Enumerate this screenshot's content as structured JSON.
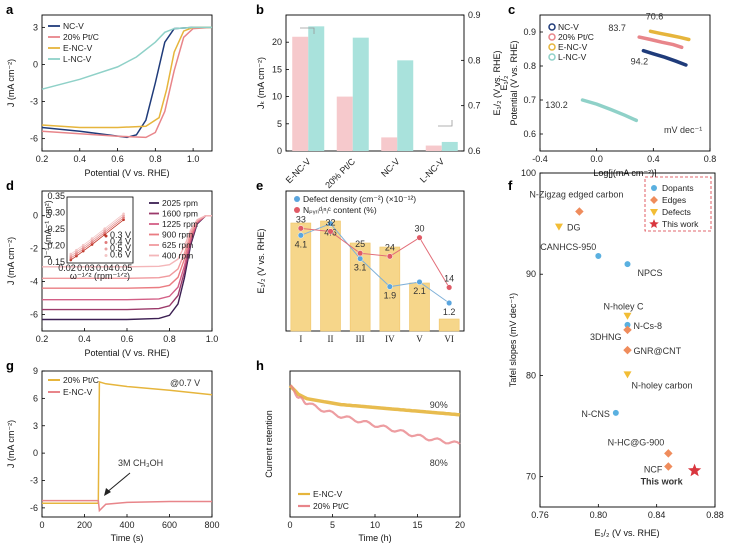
{
  "colors": {
    "nc": "#1f3b7a",
    "pt": "#e8858a",
    "enc": "#e6b53c",
    "lnc": "#8fd1c8",
    "pink_bar": "#f6c9cc",
    "teal_bar": "#a9e2dc",
    "dopant": "#5ab0e0",
    "edge": "#ef8c5c",
    "defect": "#f2bd35",
    "star": "#d9363e",
    "rde": [
      "#f4b6b9",
      "#f09a9e",
      "#ea7c82",
      "#d35f86",
      "#9b3a6a",
      "#3b1f52"
    ],
    "bar_e": "#f6d68a",
    "def_line": "#7fb0d8",
    "n_line": "#e26d78"
  },
  "panels": [
    {
      "id": "a",
      "letter": "a"
    },
    {
      "id": "b",
      "letter": "b"
    },
    {
      "id": "c",
      "letter": "c"
    },
    {
      "id": "d",
      "letter": "d"
    },
    {
      "id": "e",
      "letter": "e"
    },
    {
      "id": "f",
      "letter": "f"
    },
    {
      "id": "g",
      "letter": "g"
    },
    {
      "id": "h",
      "letter": "h"
    }
  ],
  "chart_data": [
    {
      "panel": "a",
      "type": "line",
      "xlabel": "Potential (V vs. RHE)",
      "ylabel": "J (mA cm⁻²)",
      "xlim": [
        0.2,
        1.1
      ],
      "ylim": [
        -7,
        4
      ],
      "xticks": [
        "0.2",
        "0.4",
        "0.6",
        "0.8",
        "1.0"
      ],
      "yticks": [
        "3",
        "0",
        "-3",
        "-6"
      ],
      "legend_position": "top-left",
      "series": [
        {
          "name": "NC-V",
          "color": "nc",
          "x": [
            0.2,
            0.4,
            0.55,
            0.65,
            0.7,
            0.75,
            0.8,
            0.85,
            0.9,
            1.0,
            1.1
          ],
          "y": [
            -5.1,
            -5.4,
            -5.7,
            -5.9,
            -5.7,
            -4.5,
            -1.5,
            1.8,
            2.9,
            3.0,
            3.0
          ]
        },
        {
          "name": "20% Pt/C",
          "color": "pt",
          "x": [
            0.2,
            0.4,
            0.6,
            0.75,
            0.8,
            0.85,
            0.9,
            0.95,
            1.0,
            1.1
          ],
          "y": [
            -5.4,
            -5.6,
            -5.8,
            -5.9,
            -5.5,
            -3.8,
            -0.5,
            2.2,
            2.9,
            3.0
          ]
        },
        {
          "name": "E-NC-V",
          "color": "enc",
          "x": [
            0.2,
            0.4,
            0.6,
            0.75,
            0.82,
            0.86,
            0.9,
            0.95,
            1.0,
            1.1
          ],
          "y": [
            -4.9,
            -5.1,
            -5.1,
            -5.0,
            -4.3,
            -2.0,
            1.0,
            2.7,
            3.0,
            3.0
          ]
        },
        {
          "name": "L-NC-V",
          "color": "lnc",
          "x": [
            0.2,
            0.4,
            0.6,
            0.7,
            0.8,
            0.85,
            0.9,
            1.0,
            1.1
          ],
          "y": [
            -2.0,
            -1.2,
            -0.2,
            0.6,
            1.8,
            2.6,
            2.9,
            3.0,
            3.0
          ]
        }
      ]
    },
    {
      "panel": "b",
      "type": "bar",
      "ylabel": "Jₖ (mA cm⁻²)",
      "ylabel2": "E₁/₂ (V vs. RHE)",
      "categories": [
        "E-NC-V",
        "20% Pt/C",
        "NC-V",
        "L-NC-V"
      ],
      "ylim": [
        0,
        25
      ],
      "ylim2": [
        0.6,
        0.9
      ],
      "yticks": [
        "0",
        "5",
        "10",
        "15",
        "20"
      ],
      "yticks2": [
        "0.6",
        "0.7",
        "0.8",
        "0.9"
      ],
      "series": [
        {
          "name": "",
          "color": "pink_bar",
          "axis": "left",
          "values": [
            21,
            10,
            2.5,
            1
          ]
        },
        {
          "name": "",
          "color": "teal_bar",
          "axis": "right",
          "values": [
            0.875,
            0.85,
            0.8,
            0.62
          ]
        }
      ]
    },
    {
      "panel": "c",
      "type": "line",
      "xlabel": "Log[j(mA cm⁻²)]",
      "ylabel": "Potential (V vs. RHE)",
      "ylabel_sub": "E₁/₂",
      "xlim": [
        -0.4,
        0.8
      ],
      "ylim": [
        0.55,
        0.95
      ],
      "xticks": [
        "-0.4",
        "0.0",
        "0.4",
        "0.8"
      ],
      "yticks": [
        "0.9",
        "0.8",
        "0.7",
        "0.6"
      ],
      "unit_note": "mV dec⁻¹",
      "legend_position": "top-left",
      "series": [
        {
          "name": "NC-V",
          "color": "nc",
          "label": "94.2",
          "x": [
            0.33,
            0.4,
            0.48,
            0.56,
            0.63
          ],
          "y": [
            0.845,
            0.836,
            0.826,
            0.814,
            0.803
          ]
        },
        {
          "name": "20% Pt/C",
          "color": "pt",
          "label": "83.7",
          "x": [
            0.3,
            0.38,
            0.46,
            0.54,
            0.6
          ],
          "y": [
            0.885,
            0.878,
            0.87,
            0.863,
            0.855
          ]
        },
        {
          "name": "E-NC-V",
          "color": "enc",
          "label": "70.6",
          "x": [
            0.38,
            0.45,
            0.52,
            0.59,
            0.65
          ],
          "y": [
            0.902,
            0.896,
            0.89,
            0.884,
            0.878
          ]
        },
        {
          "name": "L-NC-V",
          "color": "lnc",
          "label": "130.2",
          "x": [
            -0.1,
            0.0,
            0.1,
            0.2,
            0.28
          ],
          "y": [
            0.7,
            0.688,
            0.672,
            0.655,
            0.64
          ]
        }
      ]
    },
    {
      "panel": "d",
      "type": "line",
      "xlabel": "Potential (V vs. RHE)",
      "ylabel": "J (mA cm⁻²)",
      "xlim": [
        0.2,
        1.0
      ],
      "ylim": [
        -7,
        1.5
      ],
      "xticks": [
        "0.2",
        "0.4",
        "0.6",
        "0.8",
        "1.0"
      ],
      "yticks": [
        "0",
        "-2",
        "-4",
        "-6"
      ],
      "legend_position": "right",
      "series": [
        {
          "name": "2025 rpm",
          "color_index": 5,
          "plateau": -6.3
        },
        {
          "name": "1600 rpm",
          "color_index": 4,
          "plateau": -5.7
        },
        {
          "name": "1225 rpm",
          "color_index": 3,
          "plateau": -5.1
        },
        {
          "name": "900 rpm",
          "color_index": 2,
          "plateau": -4.4
        },
        {
          "name": "625 rpm",
          "color_index": 1,
          "plateau": -3.8
        },
        {
          "name": "400 rpm",
          "color_index": 0,
          "plateau": -3.1
        }
      ],
      "inset": {
        "type": "scatter",
        "xlabel": "ω⁻¹ᐟ² (rpm⁻¹ᐟ²)",
        "ylabel": "J⁻¹ (mA⁻¹ cm²)",
        "xlim": [
          0.02,
          0.055
        ],
        "ylim": [
          0.15,
          0.35
        ],
        "xticks": [
          "0.02",
          "0.03",
          "0.04",
          "0.05"
        ],
        "yticks": [
          "0.35",
          "0.30",
          "0.25",
          "0.20",
          "0.15"
        ],
        "legend": [
          "0.3 V",
          "0.4 V",
          "0.5 V",
          "0.6 V"
        ],
        "x": [
          0.022,
          0.025,
          0.0286,
          0.0333,
          0.04,
          0.05
        ],
        "y": [
          0.168,
          0.18,
          0.195,
          0.215,
          0.245,
          0.29
        ]
      }
    },
    {
      "panel": "e",
      "type": "bar",
      "ylabel": "E₁/₂ (V vs. RHE)",
      "categories": [
        "I",
        "II",
        "III",
        "IV",
        "V",
        "VI"
      ],
      "legend": [
        "Defect density (cm⁻²) (×10⁻¹²)",
        "Nₚᵧᵣᵢᵈᵢⁿᵢᶜ content (%)"
      ],
      "legend_position": "top",
      "bar_values": [
        0.87,
        0.875,
        0.82,
        0.81,
        0.72,
        0.63
      ],
      "series": [
        {
          "name": "Defect density",
          "values": [
            4.1,
            4.6,
            3.1,
            1.9,
            2.1,
            1.2
          ]
        },
        {
          "name": "N content",
          "values": [
            33,
            32,
            25,
            24,
            30,
            14
          ]
        }
      ],
      "defect_labels": [
        "4.1",
        "4.6",
        "3.1",
        "1.9",
        "2.1",
        "1.2"
      ],
      "n_labels": [
        "33",
        "32",
        "25",
        "24",
        "30",
        "14"
      ]
    },
    {
      "panel": "f",
      "type": "scatter",
      "xlabel": "E₁/₂ (V vs. RHE)",
      "ylabel": "Tafel slopes (mV dec⁻¹)",
      "xlim": [
        0.77,
        0.875
      ],
      "ylim": [
        67,
        100
      ],
      "xticks": [
        "0.76",
        "0.80",
        "0.84",
        "0.88"
      ],
      "yticks": [
        "100",
        "90",
        "80",
        "70"
      ],
      "legend": [
        "Dopants",
        "Edges",
        "Defects",
        "This work"
      ],
      "legend_position": "top-right",
      "points": [
        {
          "label": "N-Zigzag edged carbon",
          "kind": "edge",
          "x": 0.787,
          "y": 96.2
        },
        {
          "label": "DG",
          "kind": "defect",
          "x": 0.773,
          "y": 94.7
        },
        {
          "label": "CANHCS-950",
          "kind": "dopant",
          "x": 0.8,
          "y": 91.8
        },
        {
          "label": "NPCS",
          "kind": "dopant",
          "x": 0.82,
          "y": 91.0
        },
        {
          "label": "N-holey C",
          "kind": "defect",
          "x": 0.82,
          "y": 85.9
        },
        {
          "label": "N-Cs-8",
          "kind": "dopant",
          "x": 0.82,
          "y": 85.0
        },
        {
          "label": "3DHNG",
          "kind": "edge",
          "x": 0.82,
          "y": 84.5
        },
        {
          "label": "GNR@CNT",
          "kind": "edge",
          "x": 0.82,
          "y": 82.5
        },
        {
          "label": "N-holey carbon",
          "kind": "defect",
          "x": 0.82,
          "y": 80.1
        },
        {
          "label": "N-CNS",
          "kind": "dopant",
          "x": 0.812,
          "y": 76.3
        },
        {
          "label": "N-HC@G-900",
          "kind": "edge",
          "x": 0.848,
          "y": 72.3
        },
        {
          "label": "NCF",
          "kind": "edge",
          "x": 0.848,
          "y": 71.0
        },
        {
          "label": "This work",
          "kind": "star",
          "x": 0.866,
          "y": 70.6
        }
      ]
    },
    {
      "panel": "g",
      "type": "line",
      "xlabel": "Time (s)",
      "ylabel": "J (mA cm⁻²)",
      "xlim": [
        0,
        800
      ],
      "ylim": [
        -7,
        9
      ],
      "xticks": [
        "0",
        "200",
        "400",
        "600",
        "800"
      ],
      "yticks": [
        "9",
        "6",
        "3",
        "0",
        "-3",
        "-6"
      ],
      "annotation": "@0.7 V",
      "arrow_label": "3M CH₃OH",
      "legend_position": "top-left",
      "series": [
        {
          "name": "20% Pt/C",
          "color": "enc",
          "x": [
            0,
            265,
            270,
            300,
            400,
            600,
            800
          ],
          "y": [
            -5.5,
            -5.5,
            7.8,
            7.6,
            7.3,
            6.9,
            6.4
          ]
        },
        {
          "name": "E-NC-V",
          "color": "pt",
          "x": [
            0,
            265,
            270,
            300,
            400,
            600,
            800
          ],
          "y": [
            -5.2,
            -5.2,
            -6.3,
            -5.6,
            -5.4,
            -5.3,
            -5.3
          ]
        }
      ]
    },
    {
      "panel": "h",
      "type": "line",
      "xlabel": "Time (h)",
      "ylabel": "Current retention",
      "xlim": [
        0,
        20
      ],
      "ylim": [
        0.55,
        1.05
      ],
      "xticks": [
        "0",
        "5",
        "10",
        "15",
        "20"
      ],
      "legend_position": "bottom-left",
      "series": [
        {
          "name": "E-NC-V",
          "color": "enc",
          "label": "90%",
          "x": [
            0,
            1,
            2,
            4,
            6,
            8,
            10,
            12,
            14,
            16,
            18,
            20
          ],
          "y": [
            1.0,
            0.97,
            0.955,
            0.945,
            0.935,
            0.93,
            0.925,
            0.92,
            0.915,
            0.91,
            0.905,
            0.9
          ]
        },
        {
          "name": "20% Pt/C",
          "color": "pt",
          "label": "80%",
          "x": [
            0,
            1,
            2,
            4,
            6,
            8,
            10,
            12,
            14,
            16,
            18,
            20
          ],
          "y": [
            1.0,
            0.96,
            0.94,
            0.915,
            0.895,
            0.88,
            0.865,
            0.85,
            0.835,
            0.82,
            0.81,
            0.8
          ]
        }
      ]
    }
  ]
}
